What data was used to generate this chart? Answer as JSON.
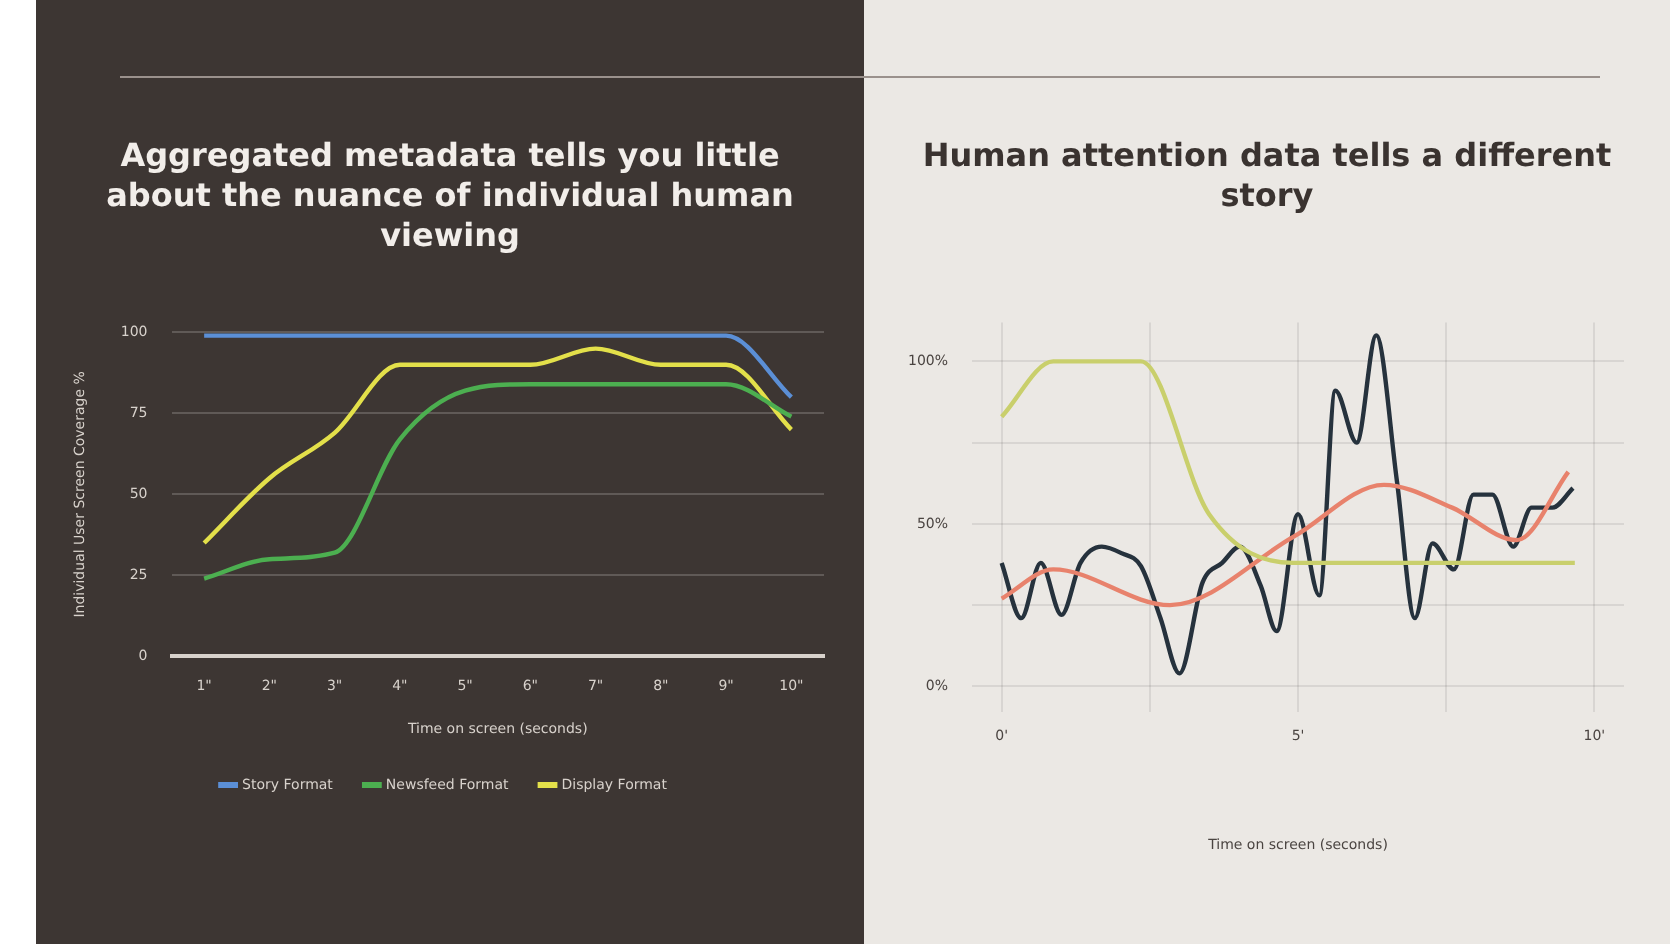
{
  "chart_data": [
    {
      "type": "line",
      "title": "Aggregated metadata tells you little about the nuance of individual human viewing",
      "xlabel": "Time on screen (seconds)",
      "ylabel": "Individual User Screen Coverage %",
      "categories": [
        "1\"",
        "2\"",
        "3\"",
        "4\"",
        "5\"",
        "6\"",
        "7\"",
        "8\"",
        "9\"",
        "10\""
      ],
      "series": [
        {
          "name": "Story Format",
          "color": "#5b8fd6",
          "values": [
            99,
            99,
            99,
            99,
            99,
            99,
            99,
            99,
            99,
            80
          ]
        },
        {
          "name": "Newsfeed Format",
          "color": "#4caf50",
          "values": [
            24,
            30,
            32,
            67,
            82,
            84,
            84,
            84,
            84,
            74
          ]
        },
        {
          "name": "Display Format",
          "color": "#e3e04a",
          "values": [
            35,
            55,
            69,
            90,
            90,
            90,
            95,
            90,
            90,
            70
          ]
        }
      ],
      "ylim": [
        0,
        100
      ],
      "yticks": [
        0,
        25,
        50,
        75,
        100
      ],
      "grid": "y",
      "legend": "bottom",
      "marker": "none"
    },
    {
      "type": "line",
      "title": "Human attention data tells a different story",
      "xlabel": "Time on screen (seconds)",
      "series": [
        {
          "color": "#c9cf6c",
          "x": [
            0,
            0.87,
            2.35,
            3.5,
            4.92,
            9.67
          ],
          "values": [
            83,
            100,
            100,
            53,
            38,
            38
          ]
        },
        {
          "color": "#e8826c",
          "x": [
            0,
            0.87,
            2.84,
            4.92,
            6.45,
            7.6,
            8.69,
            9.56
          ],
          "values": [
            27,
            36,
            25,
            46,
            62,
            55,
            45,
            66
          ]
        },
        {
          "color": "#26323d",
          "x": [
            0,
            0.33,
            0.66,
            1.01,
            1.33,
            1.69,
            2.02,
            2.35,
            2.68,
            3.0,
            3.39,
            3.72,
            4.02,
            4.37,
            4.64,
            5.0,
            5.36,
            5.63,
            5.99,
            6.32,
            6.67,
            6.97,
            7.27,
            7.63,
            7.96,
            8.28,
            8.63,
            8.94,
            9.29,
            9.64
          ],
          "values": [
            38,
            21,
            38,
            22,
            38,
            43,
            41,
            37,
            21,
            4,
            32,
            38,
            43,
            31,
            17,
            53,
            28,
            91,
            75,
            108,
            63,
            21,
            44,
            36,
            59,
            59,
            43,
            55,
            55,
            61
          ]
        }
      ],
      "xlim": [
        -0.5,
        10.5
      ],
      "xticks": [
        {
          "value": 0,
          "label": "0'"
        },
        {
          "value": 2.5,
          "label": null
        },
        {
          "value": 5,
          "label": "5'"
        },
        {
          "value": 7.5,
          "label": null
        },
        {
          "value": 10,
          "label": "10'"
        }
      ],
      "ylim": [
        -8,
        112
      ],
      "yticks": [
        {
          "value": 0,
          "label": "0%"
        },
        {
          "value": 25,
          "label": null
        },
        {
          "value": 50,
          "label": "50%"
        },
        {
          "value": 75,
          "label": null
        },
        {
          "value": 100,
          "label": "100%"
        }
      ],
      "grid": true,
      "marker": "none"
    }
  ]
}
